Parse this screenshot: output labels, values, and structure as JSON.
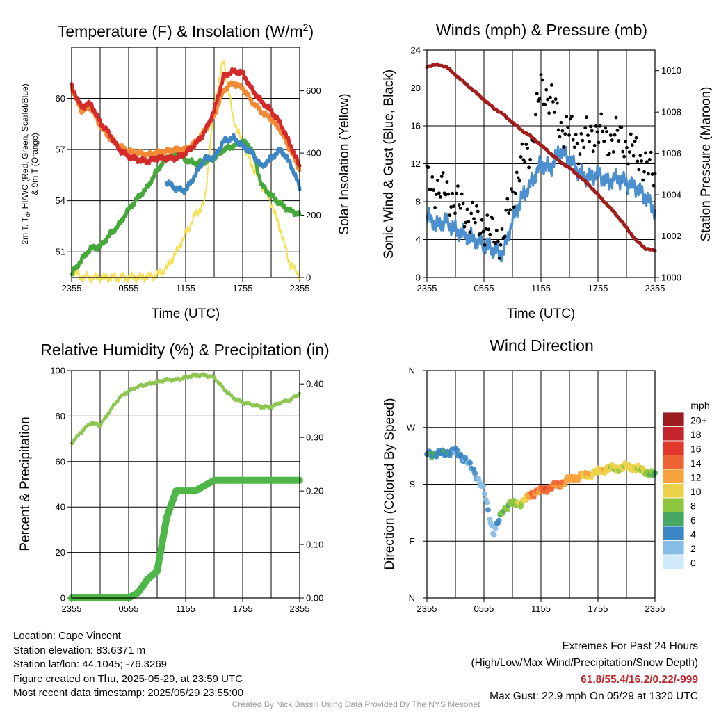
{
  "panels": [
    {
      "id": "temp",
      "title_text": "Temperature (F) & Insolation (W/m",
      "title_sup": "2",
      "title_close": ")",
      "xlabel": "Time (UTC)",
      "ylabel_left_line1": "2m T, T",
      "ylabel_left_sub": "d",
      "ylabel_left_rest": ", HI/WC (Red, Green, Scarlet/Blue)",
      "ylabel_left_line2": "& 9m T (Orange)",
      "ylabel_right": "Solar Insolation (Yellow)"
    },
    {
      "id": "wind",
      "title": "Winds (mph) & Pressure (mb)",
      "xlabel": "Time (UTC)",
      "ylabel_left": "Sonic Wind & Gust (Blue, Black)",
      "ylabel_right": "Station Pressure (Maroon)"
    },
    {
      "id": "rh",
      "title": "Relative Humidity (%) & Precipitation (in)",
      "ylabel_left": "Percent & Precipitation"
    },
    {
      "id": "dir",
      "title": "Wind Direction",
      "ylabel_left": "Direction (Colored By Speed)",
      "colorbar_unit": "mph",
      "colorbar_labels": [
        "20+",
        "18",
        "16",
        "14",
        "12",
        "10",
        "8",
        "6",
        "4",
        "2",
        "0"
      ],
      "colorbar_colors": [
        "#9b1b1e",
        "#c4242b",
        "#e0392a",
        "#ef6433",
        "#f7a23c",
        "#ecd24b",
        "#8ec63f",
        "#46a862",
        "#3b86c4",
        "#86bde6",
        "#cfe9f7"
      ]
    }
  ],
  "chart_data": [
    {
      "type": "line",
      "title": "Temperature (F) & Insolation (W/m2)",
      "xlabel": "Time (UTC)",
      "x_ticks": [
        "2355",
        "0555",
        "1155",
        "1755",
        "2355"
      ],
      "y_left_ticks": [
        51,
        54,
        57,
        60
      ],
      "y_left_lim": [
        49.5,
        63
      ],
      "y_right_ticks": [
        0,
        200,
        400,
        600
      ],
      "y_right_lim": [
        0,
        740
      ],
      "hours": [
        0,
        1,
        2,
        3,
        4,
        5,
        6,
        7,
        8,
        9,
        10,
        11,
        12,
        13,
        14,
        15,
        16,
        17,
        18,
        19,
        20,
        21,
        22,
        23,
        24
      ],
      "series": [
        {
          "name": "2m T",
          "color": "#d42a2a",
          "axis": "left",
          "values": [
            60.7,
            59.5,
            59.7,
            58.6,
            57.9,
            57.0,
            56.6,
            56.4,
            56.3,
            56.5,
            56.5,
            56.5,
            56.8,
            57.3,
            58.0,
            59.3,
            61.3,
            61.6,
            61.5,
            60.5,
            59.8,
            59.3,
            58.5,
            57.3,
            56.0
          ]
        },
        {
          "name": "9m T",
          "color": "#f08a35",
          "axis": "left",
          "values": [
            60.6,
            59.3,
            59.5,
            58.4,
            57.7,
            57.2,
            56.9,
            56.8,
            56.7,
            56.8,
            56.9,
            57.0,
            57.0,
            57.4,
            58.1,
            59.0,
            60.5,
            60.9,
            60.6,
            59.8,
            59.2,
            58.8,
            58.1,
            57.0,
            55.8
          ]
        },
        {
          "name": "Td",
          "color": "#46a83b",
          "axis": "left",
          "values": [
            49.7,
            50.5,
            51.2,
            51.3,
            52.0,
            52.6,
            53.5,
            54.2,
            54.8,
            55.8,
            56.5,
            56.8,
            56.4,
            56.2,
            56.3,
            56.5,
            57.0,
            57.2,
            57.5,
            57.0,
            54.9,
            54.3,
            53.8,
            53.4,
            53.2
          ]
        },
        {
          "name": "HI/WC",
          "color": "#3d86c6",
          "axis": "left",
          "values": [
            null,
            57.8,
            null,
            null,
            null,
            null,
            null,
            null,
            null,
            null,
            55.1,
            54.7,
            54.6,
            55.5,
            56.5,
            56.5,
            57.5,
            57.7,
            57.2,
            56.8,
            56.0,
            56.5,
            57.0,
            56.2,
            54.8
          ]
        },
        {
          "name": "Solar Insolation",
          "color": "#f5e15a",
          "axis": "right",
          "values": [
            25,
            2,
            0,
            0,
            0,
            0,
            0,
            0,
            2,
            8,
            30,
            80,
            140,
            200,
            240,
            560,
            700,
            510,
            430,
            360,
            300,
            240,
            150,
            40,
            10
          ]
        }
      ]
    },
    {
      "type": "line",
      "title": "Winds (mph) & Pressure (mb)",
      "xlabel": "Time (UTC)",
      "x_ticks": [
        "2355",
        "0555",
        "1155",
        "1755",
        "2355"
      ],
      "y_left_ticks": [
        0,
        4,
        8,
        12,
        16,
        20,
        24
      ],
      "y_left_lim": [
        0,
        24
      ],
      "y_right_ticks": [
        1000,
        1002,
        1004,
        1006,
        1008,
        1010
      ],
      "y_right_lim": [
        1000,
        1011
      ],
      "hours": [
        0,
        1,
        2,
        3,
        4,
        5,
        6,
        7,
        8,
        9,
        10,
        11,
        12,
        13,
        14,
        15,
        16,
        17,
        18,
        19,
        20,
        21,
        22,
        23,
        24
      ],
      "series": [
        {
          "name": "Sonic Wind",
          "color": "#4b8fcf",
          "axis": "left",
          "values": [
            6.5,
            5.5,
            6.0,
            5.0,
            4.5,
            4.0,
            3.5,
            3.0,
            2.5,
            6.0,
            8.5,
            10.0,
            12.0,
            11.5,
            13.5,
            12.5,
            11.0,
            10.5,
            11.0,
            10.0,
            10.5,
            10.0,
            9.5,
            8.5,
            7.0
          ]
        },
        {
          "name": "Gust",
          "color": "#000000",
          "axis": "left",
          "values": [
            10.0,
            9.5,
            9.0,
            8.0,
            7.0,
            6.0,
            5.5,
            4.5,
            4.0,
            9.0,
            12.0,
            14.0,
            20.0,
            19.0,
            16.0,
            15.5,
            14.0,
            15.0,
            15.5,
            14.5,
            15.0,
            14.0,
            13.0,
            12.0,
            10.5
          ]
        },
        {
          "name": "Station Pressure",
          "color": "#a31d1d",
          "axis": "right",
          "values": [
            1010.2,
            1010.3,
            1010.2,
            1009.8,
            1009.4,
            1009.0,
            1008.6,
            1008.2,
            1007.9,
            1007.5,
            1007.1,
            1006.8,
            1006.4,
            1006.0,
            1005.6,
            1005.3,
            1004.9,
            1004.5,
            1004.0,
            1003.5,
            1003.0,
            1002.4,
            1001.8,
            1001.4,
            1001.3
          ]
        }
      ]
    },
    {
      "type": "line",
      "title": "Relative Humidity (%) & Precipitation (in)",
      "x_ticks": [
        "2355",
        "0555",
        "1155",
        "1755",
        "2355"
      ],
      "y_left_ticks": [
        0,
        20,
        40,
        60,
        80,
        100
      ],
      "y_left_lim": [
        0,
        100
      ],
      "y_right_ticks": [
        "0.00",
        "0.10",
        "0.20",
        "0.30",
        "0.40"
      ],
      "y_right_lim": [
        0,
        0.425
      ],
      "hours": [
        0,
        1,
        2,
        3,
        4,
        5,
        6,
        7,
        8,
        9,
        10,
        11,
        12,
        13,
        14,
        15,
        16,
        17,
        18,
        19,
        20,
        21,
        22,
        23,
        24
      ],
      "series": [
        {
          "name": "Relative Humidity",
          "color": "#8dc650",
          "axis": "left",
          "values": [
            68,
            73,
            77,
            76,
            82,
            88,
            91,
            93,
            94,
            95,
            96,
            96,
            97,
            98,
            98,
            97,
            92,
            88,
            86,
            85,
            84,
            84,
            86,
            87,
            90
          ]
        },
        {
          "name": "Precipitation",
          "color": "#4fb748",
          "axis": "right",
          "values": [
            0,
            0,
            0,
            0,
            0,
            0,
            0,
            0.01,
            0.035,
            0.05,
            0.15,
            0.2,
            0.2,
            0.2,
            0.21,
            0.22,
            0.22,
            0.22,
            0.22,
            0.22,
            0.22,
            0.22,
            0.22,
            0.22,
            0.22
          ]
        }
      ]
    },
    {
      "type": "scatter",
      "title": "Wind Direction",
      "x_ticks": [
        "2355",
        "0555",
        "1155",
        "1755",
        "2355"
      ],
      "y_ticks": [
        "N",
        "E",
        "S",
        "W",
        "N"
      ],
      "y_lim": [
        0,
        360
      ],
      "color_scale_mph": [
        0,
        2,
        4,
        6,
        8,
        10,
        12,
        14,
        16,
        18,
        20
      ],
      "hours": [
        0,
        1,
        2,
        3,
        4,
        5,
        6,
        7,
        8,
        9,
        10,
        11,
        12,
        13,
        14,
        15,
        16,
        17,
        18,
        19,
        20,
        21,
        22,
        23,
        24
      ],
      "direction_deg": [
        228,
        228,
        230,
        232,
        220,
        200,
        170,
        100,
        140,
        150,
        150,
        165,
        170,
        175,
        180,
        188,
        192,
        195,
        200,
        205,
        205,
        208,
        206,
        200,
        195
      ],
      "speed_mph": [
        5,
        5,
        4,
        4,
        3,
        3,
        2,
        2,
        7,
        8,
        9,
        13,
        14,
        14,
        13,
        12,
        12,
        11,
        10,
        10,
        9,
        10,
        10,
        8,
        7
      ]
    }
  ],
  "footer": {
    "location": "Location: Cape Vincent",
    "elevation": "Station elevation: 83.6371 m",
    "latlon": "Station lat/lon: 44.1045; -76.3269",
    "created": "Figure created on Thu, 2025-05-29, at 23:59 UTC",
    "recent": "Most recent data timestamp: 2025/05/29 23:55:00",
    "extremes_title": "Extremes For Past 24 Hours",
    "extremes_legend": "(High/Low/Max Wind/Precipitation/Snow Depth)",
    "extremes_values": "61.8/55.4/16.2/0.22/-999",
    "max_gust": "Max Gust: 22.9 mph On 05/29 at 1320 UTC",
    "credit": "Created By Nick Bassill Using Data Provided By The NYS Mesonet"
  }
}
